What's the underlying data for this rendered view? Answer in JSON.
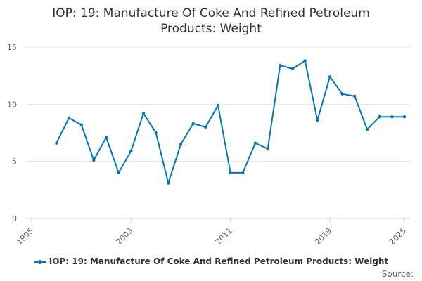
{
  "chart_data": {
    "type": "line",
    "title": "IOP: 19: Manufacture Of Coke And Refined Petroleum Products: Weight",
    "title_lines": [
      "IOP: 19: Manufacture Of Coke And Refined Petroleum",
      "Products: Weight"
    ],
    "xlabel": "",
    "ylabel": "",
    "xlim": [
      1995,
      2025
    ],
    "ylim": [
      0,
      15
    ],
    "x_ticks": [
      1995,
      2003,
      2011,
      2019,
      2025
    ],
    "y_ticks": [
      0,
      5,
      10,
      15
    ],
    "grid": true,
    "legend_position": "bottom",
    "color": "#0077bb",
    "series": [
      {
        "name": "IOP: 19: Manufacture Of Coke And Refined Petroleum Products: Weight",
        "x": [
          1997,
          1998,
          1999,
          2000,
          2001,
          2002,
          2003,
          2004,
          2005,
          2006,
          2007,
          2008,
          2009,
          2010,
          2011,
          2012,
          2013,
          2014,
          2015,
          2016,
          2017,
          2018,
          2019,
          2020,
          2021,
          2022,
          2023,
          2024,
          2025
        ],
        "values": [
          6.6,
          8.8,
          8.2,
          5.1,
          7.1,
          4.0,
          5.9,
          9.2,
          7.5,
          3.1,
          6.5,
          8.3,
          8.0,
          9.9,
          4.0,
          4.0,
          6.6,
          6.1,
          13.4,
          13.1,
          13.8,
          8.6,
          12.4,
          10.9,
          10.7,
          7.8,
          8.9,
          8.9,
          8.9
        ]
      }
    ]
  },
  "legend": {
    "label": "IOP: 19: Manufacture Of Coke And Refined Petroleum Products: Weight"
  },
  "source_label": "Source:"
}
